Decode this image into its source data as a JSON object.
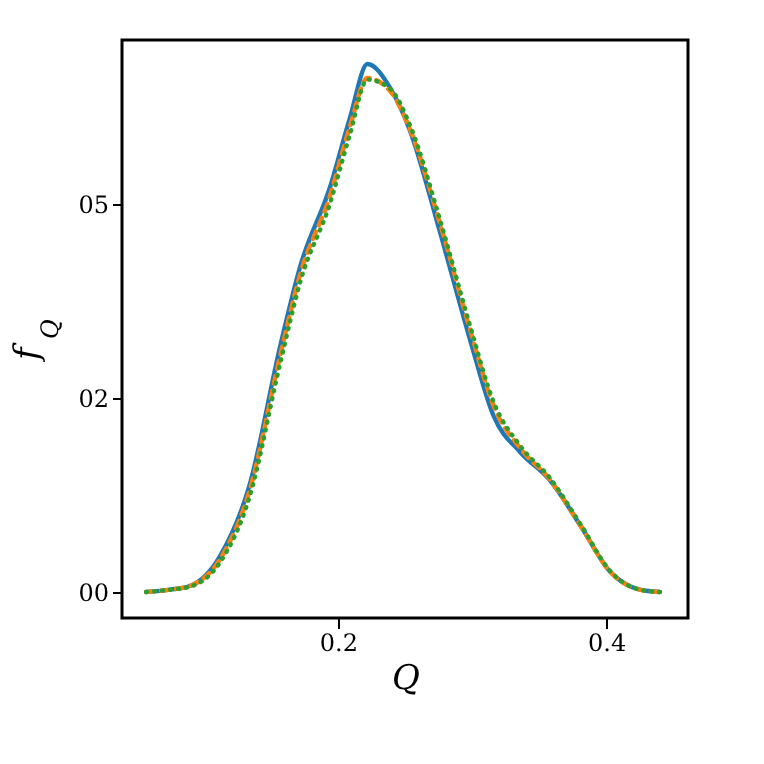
{
  "chart_data": {
    "type": "line",
    "xlabel": "Q",
    "ylabel": "f$_{Q}$",
    "x": [
      0.057,
      0.075,
      0.09,
      0.112,
      0.134,
      0.157,
      0.172,
      0.194,
      0.209,
      0.222,
      0.239,
      0.254,
      0.276,
      0.299,
      0.316,
      0.336,
      0.358,
      0.381,
      0.403,
      0.425,
      0.44
    ],
    "series": [
      {
        "color": "#1f77b4",
        "line_style": "solid",
        "values": [
          0,
          0.03,
          0.08,
          0.46,
          1.37,
          3.17,
          4.2,
          5.21,
          6.11,
          6.8,
          6.49,
          5.93,
          4.64,
          3.22,
          2.27,
          1.8,
          1.44,
          0.85,
          0.26,
          0.03,
          0
        ]
      },
      {
        "color": "#ff7f0e",
        "line_style": "dashed",
        "values": [
          0,
          0.03,
          0.08,
          0.42,
          1.3,
          3.05,
          4.1,
          5.1,
          6.0,
          6.62,
          6.45,
          5.95,
          4.75,
          3.35,
          2.4,
          1.85,
          1.45,
          0.85,
          0.26,
          0.03,
          0
        ]
      },
      {
        "color": "#2ca02c",
        "line_style": "dotted",
        "values": [
          0,
          0.03,
          0.07,
          0.38,
          1.22,
          2.95,
          4.0,
          5.0,
          5.9,
          6.6,
          6.48,
          6.0,
          4.8,
          3.4,
          2.45,
          1.88,
          1.47,
          0.87,
          0.27,
          0.03,
          0
        ]
      }
    ],
    "xlim": [
      0.039,
      0.461
    ],
    "ylim": [
      -0.335,
      7.11
    ],
    "xticks": [
      0.2,
      0.4
    ],
    "yticks": [
      {
        "value": 0,
        "label": "00"
      },
      {
        "value": 2.5,
        "label": "02"
      },
      {
        "value": 5,
        "label": "05"
      }
    ],
    "grid": false,
    "marker": "none"
  }
}
